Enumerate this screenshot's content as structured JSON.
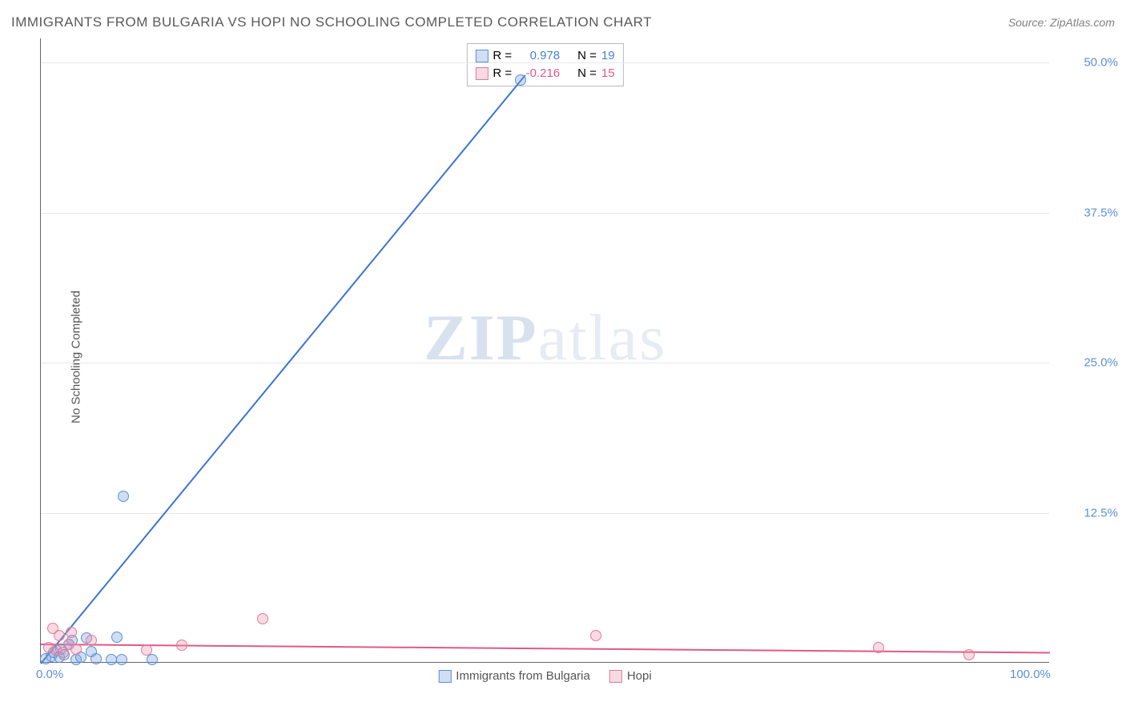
{
  "title": "IMMIGRANTS FROM BULGARIA VS HOPI NO SCHOOLING COMPLETED CORRELATION CHART",
  "source": "Source: ZipAtlas.com",
  "y_axis_label": "No Schooling Completed",
  "watermark_zip": "ZIP",
  "watermark_atlas": "atlas",
  "chart": {
    "type": "scatter",
    "xlim": [
      0,
      100
    ],
    "ylim": [
      0,
      52
    ],
    "x_ticks": [
      {
        "pos": 0,
        "label": "0.0%"
      },
      {
        "pos": 100,
        "label": "100.0%"
      }
    ],
    "y_ticks": [
      {
        "pos": 12.5,
        "label": "12.5%"
      },
      {
        "pos": 25.0,
        "label": "25.0%"
      },
      {
        "pos": 37.5,
        "label": "37.5%"
      },
      {
        "pos": 50.0,
        "label": "50.0%"
      }
    ],
    "grid_color": "#e8e8e8",
    "background_color": "#ffffff",
    "series": [
      {
        "name": "Immigrants from Bulgaria",
        "color_fill": "rgba(120,160,220,0.35)",
        "color_stroke": "#5b8fd6",
        "marker_size": 14,
        "R": "0.978",
        "N": "19",
        "R_color": "#4a7fd0",
        "trend": {
          "x1": 0,
          "y1": 0,
          "x2": 48,
          "y2": 49,
          "color": "#3b74d1",
          "width": 2
        },
        "points": [
          {
            "x": 0.5,
            "y": 0.3
          },
          {
            "x": 1.0,
            "y": 0.5
          },
          {
            "x": 1.3,
            "y": 0.8
          },
          {
            "x": 1.8,
            "y": 0.4
          },
          {
            "x": 2.0,
            "y": 1.1
          },
          {
            "x": 2.3,
            "y": 0.6
          },
          {
            "x": 2.8,
            "y": 1.5
          },
          {
            "x": 3.1,
            "y": 1.8
          },
          {
            "x": 3.5,
            "y": 0.2
          },
          {
            "x": 4.0,
            "y": 0.4
          },
          {
            "x": 4.5,
            "y": 2.0
          },
          {
            "x": 5.0,
            "y": 0.9
          },
          {
            "x": 5.5,
            "y": 0.3
          },
          {
            "x": 7.0,
            "y": 0.2
          },
          {
            "x": 7.5,
            "y": 2.1
          },
          {
            "x": 8.0,
            "y": 0.2
          },
          {
            "x": 11.0,
            "y": 0.2
          },
          {
            "x": 8.2,
            "y": 13.8
          },
          {
            "x": 47.5,
            "y": 48.5
          }
        ]
      },
      {
        "name": "Hopi",
        "color_fill": "rgba(235,150,175,0.35)",
        "color_stroke": "#e27a9a",
        "marker_size": 14,
        "R": "-0.216",
        "N": "15",
        "R_color": "#e05a85",
        "trend": {
          "x1": 0,
          "y1": 1.6,
          "x2": 100,
          "y2": 0.9,
          "color": "#e05a85",
          "width": 2
        },
        "points": [
          {
            "x": 0.8,
            "y": 1.2
          },
          {
            "x": 1.2,
            "y": 2.8
          },
          {
            "x": 1.5,
            "y": 1.0
          },
          {
            "x": 1.8,
            "y": 2.2
          },
          {
            "x": 2.2,
            "y": 0.8
          },
          {
            "x": 2.8,
            "y": 1.5
          },
          {
            "x": 3.5,
            "y": 1.1
          },
          {
            "x": 5.0,
            "y": 1.8
          },
          {
            "x": 10.5,
            "y": 1.0
          },
          {
            "x": 14.0,
            "y": 1.4
          },
          {
            "x": 22.0,
            "y": 3.6
          },
          {
            "x": 55.0,
            "y": 2.2
          },
          {
            "x": 83.0,
            "y": 1.2
          },
          {
            "x": 92.0,
            "y": 0.6
          },
          {
            "x": 3.0,
            "y": 2.5
          }
        ]
      }
    ],
    "legend_top": {
      "label_R": "R =",
      "label_N": "N ="
    },
    "legend_bottom": [
      {
        "swatch_fill": "rgba(120,160,220,0.35)",
        "swatch_stroke": "#5b8fd6",
        "label": "Immigrants from Bulgaria"
      },
      {
        "swatch_fill": "rgba(235,150,175,0.35)",
        "swatch_stroke": "#e27a9a",
        "label": "Hopi"
      }
    ]
  }
}
